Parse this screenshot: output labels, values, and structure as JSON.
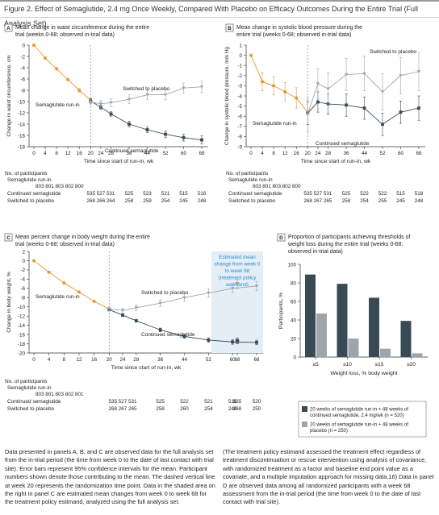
{
  "figure_title": "Figure 2. Effect of Semaglutide, 2.4 mg Once Weekly, Compared With Placebo on Efficacy Outcomes During the Entire Trial (Full Analysis Set)",
  "colors": {
    "runin": "#e8972f",
    "cont": "#3a4a55",
    "placebo": "#9ea6ad",
    "shade": "#e3eef7",
    "estimand_text": "#2a8ad0"
  },
  "chart_data": [
    {
      "id": "A",
      "type": "line",
      "title": "Mean change in waist circumference during the entire trial (weeks 0-68; observed in-trial data)",
      "xlabel": "Time since start of run-in, wk",
      "ylabel": "Change in waist circumference, cm",
      "ylim": [
        -18,
        0
      ],
      "yticks": [
        0,
        -2,
        -4,
        -6,
        -8,
        -10,
        -12,
        -14,
        -16,
        -18
      ],
      "xticks": [
        0,
        4,
        8,
        12,
        16,
        20,
        24,
        28,
        36,
        44,
        52,
        60,
        68
      ],
      "series": [
        {
          "name": "Semaglutide run-in",
          "x": [
            0,
            4,
            8,
            12,
            16,
            20
          ],
          "y": [
            0,
            -2.3,
            -4.2,
            -6.1,
            -8.0,
            -9.8
          ],
          "err": [
            0,
            0.1,
            0.2,
            0.2,
            0.3,
            0.4
          ]
        },
        {
          "name": "Continued semaglutide",
          "x": [
            20,
            24,
            28,
            36,
            44,
            52,
            60,
            68
          ],
          "y": [
            -9.9,
            -11.0,
            -12.2,
            -14.0,
            -15.0,
            -15.8,
            -16.4,
            -16.8
          ],
          "err": [
            0.4,
            0.4,
            0.4,
            0.5,
            0.5,
            0.6,
            0.6,
            0.7
          ]
        },
        {
          "name": "Switched to placebo",
          "x": [
            20,
            24,
            28,
            36,
            44,
            52,
            60,
            68
          ],
          "y": [
            -10.1,
            -10.4,
            -10.2,
            -9.6,
            -8.8,
            -8.8,
            -7.6,
            -7.4
          ],
          "err": [
            0.5,
            0.6,
            0.7,
            0.8,
            0.8,
            0.9,
            0.9,
            1.0
          ]
        }
      ],
      "labels": {
        "runin": "Semaglutide run-in",
        "cont": "Continued semaglutide",
        "placebo": "Switched to placebo"
      },
      "participants": {
        "header": "No. of participants",
        "runin_label": "Semaglutide run-in",
        "runin_counts": "803 801 803 802 800",
        "rows": [
          {
            "label": "Continued semaglutide",
            "counts": [
              "535 527 531",
              "525",
              "523",
              "521",
              "515",
              "518"
            ]
          },
          {
            "label": "Switched to placebo",
            "counts": [
              "268 266 264",
              "258",
              "259",
              "254",
              "245",
              "248"
            ]
          }
        ]
      }
    },
    {
      "id": "B",
      "type": "line",
      "title": "Mean change in systolic blood pressure during the entire trial (weeks 0-68; observed in-trial data)",
      "xlabel": "Time since start of run-in, wk",
      "ylabel": "Change in systolic blood pressure, mm Hg",
      "ylim": [
        -9,
        1
      ],
      "yticks": [
        1,
        0,
        -1,
        -2,
        -3,
        -4,
        -5,
        -6,
        -7,
        -8,
        -9
      ],
      "xticks": [
        0,
        4,
        8,
        12,
        16,
        20,
        24,
        28,
        36,
        44,
        52,
        60,
        68
      ],
      "series": [
        {
          "name": "Semaglutide run-in",
          "x": [
            0,
            4,
            8,
            12,
            16,
            20
          ],
          "y": [
            0,
            -2.6,
            -3.0,
            -3.6,
            -4.2,
            -5.6
          ],
          "err": [
            0,
            0.9,
            0.9,
            0.9,
            1.0,
            1.2
          ]
        },
        {
          "name": "Continued semaglutide",
          "x": [
            20,
            24,
            28,
            36,
            44,
            52,
            60,
            68
          ],
          "y": [
            -5.7,
            -4.6,
            -4.8,
            -4.9,
            -5.2,
            -6.8,
            -5.6,
            -5.2
          ],
          "err": [
            1.1,
            1.0,
            1.0,
            1.1,
            1.1,
            1.1,
            1.1,
            1.2
          ]
        },
        {
          "name": "Switched to placebo",
          "x": [
            20,
            24,
            28,
            36,
            44,
            52,
            60,
            68
          ],
          "y": [
            -5.8,
            -2.8,
            -3.3,
            -1.9,
            -1.8,
            -3.6,
            -2.0,
            -1.6
          ],
          "err": [
            1.7,
            1.5,
            1.6,
            1.6,
            1.7,
            1.8,
            1.8,
            1.9
          ]
        }
      ],
      "labels": {
        "runin": "Semaglutide run-in",
        "cont": "Continued semaglutide",
        "placebo": "Switched to placebo"
      },
      "participants": {
        "header": "No. of participants",
        "runin_label": "Semaglutide run-in",
        "runin_counts": "803 801 803 802 800",
        "rows": [
          {
            "label": "Continued semaglutide",
            "counts": [
              "535 527 531",
              "525",
              "522",
              "522",
              "515",
              "518"
            ]
          },
          {
            "label": "Switched to placebo",
            "counts": [
              "268 267 265",
              "258",
              "254",
              "255",
              "245",
              "248"
            ]
          }
        ]
      }
    },
    {
      "id": "C",
      "type": "line",
      "title": "Mean percent change in body weight during the entire trial (weeks 0-68; observed in-trial data)",
      "xlabel": "Time since start of run-in, wk",
      "ylabel": "Change in body weight, %",
      "ylim": [
        -20,
        2
      ],
      "yticks": [
        2,
        0,
        -2,
        -4,
        -6,
        -8,
        -10,
        -12,
        -14,
        -16,
        -18,
        -20
      ],
      "xticks": [
        0,
        4,
        8,
        12,
        16,
        20,
        24,
        28,
        36,
        44,
        52,
        60,
        68
      ],
      "estimand_tick": "68",
      "estimand_label": "Estimated mean change from week 0 to week 68 (treatment policy estimand)",
      "estimand_points": {
        "placebo": {
          "y": -5.0,
          "err": 1.0
        },
        "cont": {
          "y": -17.4,
          "err": 0.6
        }
      },
      "series": [
        {
          "name": "Semaglutide run-in",
          "x": [
            0,
            4,
            8,
            12,
            16,
            20
          ],
          "y": [
            0,
            -2.5,
            -4.8,
            -6.8,
            -8.8,
            -10.5
          ],
          "err": [
            0,
            0.1,
            0.1,
            0.2,
            0.2,
            0.3
          ]
        },
        {
          "name": "Continued semaglutide",
          "x": [
            20,
            24,
            28,
            36,
            44,
            52,
            60,
            68
          ],
          "y": [
            -10.6,
            -11.8,
            -13.0,
            -15.0,
            -16.4,
            -17.2,
            -17.6,
            -17.7
          ],
          "err": [
            0.3,
            0.3,
            0.3,
            0.4,
            0.4,
            0.5,
            0.5,
            0.5
          ]
        },
        {
          "name": "Switched to placebo",
          "x": [
            20,
            24,
            28,
            36,
            44,
            52,
            60,
            68
          ],
          "y": [
            -10.4,
            -10.8,
            -10.2,
            -9.2,
            -8.0,
            -7.0,
            -6.0,
            -5.5
          ],
          "err": [
            0.4,
            0.5,
            0.6,
            0.7,
            0.8,
            0.9,
            0.9,
            1.0
          ]
        }
      ],
      "labels": {
        "runin": "Semaglutide run-in",
        "cont": "Continued semaglutide",
        "placebo": "Switched to placebo"
      },
      "participants": {
        "header": "No. of participants",
        "runin_label": "Semaglutide run-in",
        "runin_counts": "803 801 803 802 801",
        "rows": [
          {
            "label": "Continued semaglutide",
            "counts": [
              "535 527 531",
              "525",
              "522",
              "521",
              "516",
              "520"
            ],
            "estimand": "535"
          },
          {
            "label": "Switched to placebo",
            "counts": [
              "268 267 265",
              "258",
              "260",
              "254",
              "246",
              "250"
            ],
            "estimand": "268"
          }
        ]
      }
    },
    {
      "id": "D",
      "type": "bar",
      "title": "Proportion of participants achieving thresholds of weight loss during the entire trial (weeks 0-68; observed in-trial data)",
      "xlabel": "Weight loss, % body weight",
      "ylabel": "Participants, %",
      "ylim": [
        0,
        100
      ],
      "yticks": [
        0,
        20,
        40,
        60,
        80,
        100
      ],
      "categories": [
        "≥5",
        "≥10",
        "≥15",
        "≥20"
      ],
      "series": [
        {
          "name": "20 weeks of semaglutide run-in + 48 weeks of continued semaglutide, 2.4 mg/wk (n = 520)",
          "values": [
            89,
            79,
            64,
            39
          ]
        },
        {
          "name": "20 weeks of semaglutide run-in + 48 weeks of placebo (n = 250)",
          "values": [
            47,
            20,
            9,
            4
          ]
        }
      ]
    }
  ],
  "footnote_left": "Data presented in panels A, B, and C are observed data for the full analysis set from the in-trial period (the time from week 0 to the date of last contact with trial site). Error bars represent 95% confidence intervals for the mean. Participant numbers shown denote those contributing to the mean. The dashed vertical line at week 20 represents the randomization time point. Data in the shaded area on the right in panel C are estimated mean changes from week 0 to week 68 for the treatment policy estimand, analyzed using the full analysis set.",
  "footnote_right": "(The treatment policy estimand assessed the treatment effect regardless of treatment discontinuation or rescue intervention using analysis of covariance, with randomized treatment as a factor and baseline end point value as a covariate, and a multiple imputation approach for missing data.16) Data in panel D are observed data among all randomized participants with a week 68 assessment from the in-trial period (the time from week 0 to the date of last contact with trial site)."
}
